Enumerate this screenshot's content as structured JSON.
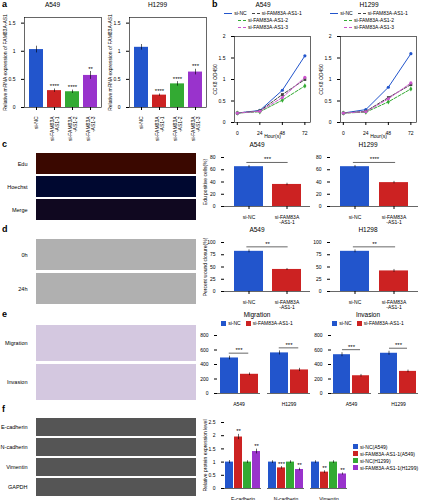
{
  "chart_data": [
    {
      "type": "bar",
      "title": "A549",
      "categories": [
        "si-NC",
        "si-FAM83A\n-AS1-1",
        "si-FAM83A\n-AS1-2",
        "si-FAM83A\n-AS1-3"
      ],
      "values": [
        1.03,
        0.3,
        0.28,
        0.57
      ],
      "errors": [
        0.06,
        0.03,
        0.03,
        0.07
      ],
      "colors": [
        "#2255cc",
        "#cc2222",
        "#33aa33",
        "#9933cc"
      ],
      "ylabel": "Relative mRNA expression of FAM83A-AS1",
      "ylim": [
        0,
        1.6
      ],
      "yticks": [
        0,
        0.5,
        1,
        1.5
      ],
      "annotations": [
        {
          "text": "a"
        },
        {
          "text": "****",
          "x": "si-FAM83A\n-AS1-1"
        },
        {
          "text": "****",
          "x": "si-FAM83A\n-AS1-2"
        },
        {
          "text": "**",
          "x": "si-FAM83A\n-AS1-3"
        }
      ]
    },
    {
      "type": "bar",
      "title": "H1299",
      "categories": [
        "si-NC",
        "si-FAM83A\n-AS1-1",
        "si-FAM83A\n-AS1-2",
        "si-FAM83A\n-AS1-3"
      ],
      "values": [
        1.07,
        0.22,
        0.42,
        0.63
      ],
      "errors": [
        0.05,
        0.02,
        0.04,
        0.05
      ],
      "colors": [
        "#2255cc",
        "#cc2222",
        "#33aa33",
        "#9933cc"
      ],
      "ylabel": "Relative mRNA expression of FAM83A-AS1",
      "ylim": [
        0,
        1.6
      ],
      "yticks": [
        0,
        0.5,
        1,
        1.5
      ],
      "annotations": [
        {
          "text": "****",
          "x": "si-FAM83A\n-AS1-1"
        },
        {
          "text": "****",
          "x": "si-FAM83A\n-AS1-2"
        },
        {
          "text": "***",
          "x": "si-FAM83A\n-AS1-3"
        }
      ]
    },
    {
      "type": "line",
      "title": "A549",
      "x": [
        0,
        24,
        48,
        72
      ],
      "series": [
        {
          "name": "si-NC",
          "color": "#2255cc",
          "marker": "circle",
          "line_style": "solid",
          "values": [
            0.22,
            0.28,
            0.75,
            1.55
          ]
        },
        {
          "name": "si-FAM83A-AS1-1",
          "color": "#444444",
          "marker": "square",
          "line_style": "dashed",
          "values": [
            0.22,
            0.27,
            0.65,
            1.0
          ]
        },
        {
          "name": "si-FAM83A-AS1-2",
          "color": "#33aa33",
          "marker": "diamond",
          "line_style": "dashed",
          "values": [
            0.22,
            0.25,
            0.52,
            0.85
          ]
        },
        {
          "name": "si-FAM83A-AS1-3",
          "color": "#cc55cc",
          "marker": "circle",
          "line_style": "dashed",
          "values": [
            0.22,
            0.26,
            0.58,
            1.05
          ]
        }
      ],
      "xlabel": "Hour(s)",
      "ylabel": "CCK8 OD450",
      "xlim": [
        -3,
        78
      ],
      "xticks": [
        0,
        24,
        48,
        72
      ],
      "ylim": [
        0,
        2.0
      ],
      "yticks": [
        0,
        0.5,
        1,
        1.5,
        2
      ],
      "legend": "top",
      "annotations": [
        {
          "text": "b"
        }
      ]
    },
    {
      "type": "line",
      "title": "H1299",
      "x": [
        0,
        24,
        48,
        72
      ],
      "series": [
        {
          "name": "si-NC",
          "color": "#2255cc",
          "marker": "circle",
          "line_style": "solid",
          "values": [
            0.22,
            0.3,
            0.82,
            1.6
          ]
        },
        {
          "name": "si-FAM83A-AS1-1",
          "color": "#444444",
          "marker": "square",
          "line_style": "dashed",
          "values": [
            0.22,
            0.26,
            0.58,
            0.88
          ]
        },
        {
          "name": "si-FAM83A-AS1-2",
          "color": "#33aa33",
          "marker": "diamond",
          "line_style": "dashed",
          "values": [
            0.22,
            0.24,
            0.48,
            0.78
          ]
        },
        {
          "name": "si-FAM83A-AS1-3",
          "color": "#cc55cc",
          "marker": "circle",
          "line_style": "dashed",
          "values": [
            0.22,
            0.25,
            0.55,
            0.92
          ]
        }
      ],
      "xlabel": "Hour(s)",
      "ylabel": "CCK8 OD450",
      "xlim": [
        -3,
        78
      ],
      "xticks": [
        0,
        24,
        48,
        72
      ],
      "ylim": [
        0,
        2.0
      ],
      "yticks": [
        0,
        0.5,
        1,
        1.5,
        2
      ],
      "legend": "top"
    },
    {
      "type": "image",
      "categories": [
        "Edu",
        "Hoechst",
        "Merge"
      ],
      "colors": [
        "#3a0800",
        "#000830",
        "#100820"
      ],
      "tick_labels": "y",
      "annotations": [
        {
          "text": "c"
        }
      ]
    },
    {
      "type": "bar",
      "title": "A549",
      "categories": [
        "si-NC",
        "si-FAM83A\n-AS1-1"
      ],
      "values": [
        65,
        36
      ],
      "errors": [
        2,
        2
      ],
      "colors": [
        "#2255cc",
        "#cc2222"
      ],
      "ylabel": "Edu positive cells(%)",
      "ylim": [
        0,
        80
      ],
      "yticks": [
        0,
        20,
        40,
        60,
        80
      ],
      "annotations": [
        {
          "text": "***",
          "x": [
            "si-NC",
            "si-FAM83A\n-AS1-1"
          ]
        }
      ]
    },
    {
      "type": "bar",
      "title": "H1299",
      "categories": [
        "si-NC",
        "si-FAM83A\n-AS1-1"
      ],
      "values": [
        65,
        39
      ],
      "errors": [
        2,
        2
      ],
      "colors": [
        "#2255cc",
        "#cc2222"
      ],
      "ylim": [
        0,
        80
      ],
      "yticks": [
        0,
        20,
        40,
        60,
        80
      ],
      "annotations": [
        {
          "text": "****",
          "x": [
            "si-NC",
            "si-FAM83A\n-AS1-1"
          ]
        }
      ]
    },
    {
      "type": "image",
      "categories": [
        "0h",
        "24h"
      ],
      "color": "#b0b0b0",
      "tick_labels": "y",
      "annotations": [
        {
          "text": "d"
        }
      ]
    },
    {
      "type": "bar",
      "title": "A549",
      "categories": [
        "si-NC",
        "si-FAM83A\n-AS1-1"
      ],
      "values": [
        82,
        45
      ],
      "errors": [
        3,
        2
      ],
      "colors": [
        "#2255cc",
        "#cc2222"
      ],
      "ylabel": "Percent wound closure(%)",
      "ylim": [
        0,
        100
      ],
      "yticks": [
        0,
        25,
        50,
        75,
        100
      ],
      "annotations": [
        {
          "text": "**",
          "x": [
            "si-NC",
            "si-FAM83A\n-AS1-1"
          ]
        }
      ]
    },
    {
      "type": "bar",
      "title": "H1298",
      "categories": [
        "si-NC",
        "si-FAM83A\n-AS1-1"
      ],
      "values": [
        82,
        42
      ],
      "errors": [
        3,
        3
      ],
      "colors": [
        "#2255cc",
        "#cc2222"
      ],
      "ylim": [
        0,
        100
      ],
      "yticks": [
        0,
        25,
        50,
        75,
        100
      ],
      "annotations": [
        {
          "text": "**",
          "x": [
            "si-NC",
            "si-FAM83A\n-AS1-1"
          ]
        }
      ]
    },
    {
      "type": "image",
      "categories": [
        "Migration",
        "Invasion"
      ],
      "color": "#d4c8e0",
      "tick_labels": "y",
      "annotations": [
        {
          "text": "e"
        }
      ]
    },
    {
      "type": "bar",
      "title": "Migration",
      "categories": [
        "A549",
        "H1299"
      ],
      "series": [
        {
          "name": "si-NC",
          "color": "#2255cc",
          "values": [
            490,
            560
          ],
          "errors": [
            25,
            28
          ]
        },
        {
          "name": "si-FAM83A-AS1-1",
          "color": "#cc2222",
          "values": [
            265,
            325
          ],
          "errors": [
            18,
            22
          ]
        }
      ],
      "ylim": [
        0,
        800
      ],
      "yticks": [
        0,
        200,
        400,
        600,
        800
      ],
      "legend": "top",
      "annotations": [
        {
          "text": "***",
          "x": "A549"
        },
        {
          "text": "***",
          "x": "H1299"
        }
      ]
    },
    {
      "type": "bar",
      "title": "Invasion",
      "categories": [
        "A549",
        "H1299"
      ],
      "series": [
        {
          "name": "si-NC",
          "color": "#2255cc",
          "values": [
            535,
            555
          ],
          "errors": [
            28,
            28
          ]
        },
        {
          "name": "si-FAM83A-AS1-1",
          "color": "#cc2222",
          "values": [
            245,
            305
          ],
          "errors": [
            18,
            18
          ]
        }
      ],
      "ylim": [
        0,
        800
      ],
      "yticks": [
        0,
        200,
        400,
        600,
        800
      ],
      "legend": "top",
      "annotations": [
        {
          "text": "***",
          "x": "A549"
        },
        {
          "text": "***",
          "x": "H1299"
        }
      ]
    },
    {
      "type": "image",
      "categories": [
        "E-cadherin",
        "N-cadherin",
        "Vimentin",
        "GAPDH"
      ],
      "color": "#555555",
      "tick_labels": "y",
      "annotations": [
        {
          "text": "f"
        }
      ]
    },
    {
      "type": "bar",
      "categories": [
        "E-cadherin",
        "N-cadherin",
        "Vimentin"
      ],
      "series": [
        {
          "name": "si-NC(A549)",
          "color": "#2255cc",
          "values": [
            1.0,
            1.0,
            1.0
          ],
          "errors": [
            0.06,
            0.05,
            0.05
          ]
        },
        {
          "name": "si-FAM83A-AS1-1(A549)",
          "color": "#cc2222",
          "values": [
            1.95,
            0.78,
            0.62
          ],
          "errors": [
            0.1,
            0.05,
            0.05
          ]
        },
        {
          "name": "si-NC(H1299)",
          "color": "#33aa33",
          "values": [
            1.0,
            1.0,
            1.0
          ],
          "errors": [
            0.05,
            0.05,
            0.05
          ]
        },
        {
          "name": "si-FAM83A-AS1-1(H1299)",
          "color": "#9933cc",
          "values": [
            1.4,
            0.72,
            0.55
          ],
          "errors": [
            0.09,
            0.05,
            0.04
          ]
        }
      ],
      "ylabel": "Relative protein expression level",
      "ylim": [
        0,
        2.5
      ],
      "yticks": [
        0,
        0.5,
        1,
        1.5,
        2,
        2.5
      ],
      "legend": "right",
      "annotations": [
        {
          "text": "**",
          "x": "E-cadherin",
          "series": "si-FAM83A-AS1-1(A549)"
        },
        {
          "text": "**",
          "x": "E-cadherin",
          "series": "si-FAM83A-AS1-1(H1299)"
        },
        {
          "text": "***",
          "x": "N-cadherin",
          "series": "si-FAM83A-AS1-1(A549)"
        },
        {
          "text": "**",
          "x": "N-cadherin",
          "series": "si-FAM83A-AS1-1(H1299)"
        },
        {
          "text": "**",
          "x": "Vimentin",
          "series": "si-FAM83A-AS1-1(A549)"
        },
        {
          "text": "**",
          "x": "Vimentin",
          "series": "si-FAM83A-AS1-1(H1299)"
        }
      ]
    }
  ]
}
